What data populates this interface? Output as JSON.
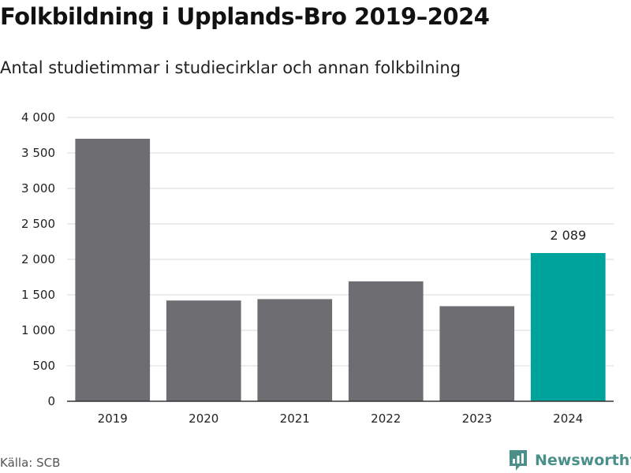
{
  "chart_data": {
    "type": "bar",
    "title": "Folkbildning i Upplands-Bro 2019–2024",
    "subtitle": "Antal studietimmar i studiecirklar och annan folkbilning",
    "categories": [
      "2019",
      "2020",
      "2021",
      "2022",
      "2023",
      "2024"
    ],
    "values": [
      3700,
      1420,
      1440,
      1690,
      1340,
      2089
    ],
    "highlight_index": 5,
    "data_labels": [
      {
        "index": 5,
        "text": "2 089"
      }
    ],
    "y_ticks": [
      0,
      500,
      1000,
      1500,
      2000,
      2500,
      3000,
      3500,
      4000
    ],
    "y_tick_labels": [
      "0",
      "500",
      "1 000",
      "1 500",
      "2 000",
      "2 500",
      "3 000",
      "3 500",
      "4 000"
    ],
    "ylim": [
      0,
      4000
    ],
    "grid": true,
    "xlabel": "",
    "ylabel": "",
    "colors": {
      "bar": "#6e6d72",
      "highlight": "#00a39b",
      "grid": "#d9d9d9",
      "axis": "#333333"
    }
  },
  "footer": {
    "source": "Källa: SCB",
    "brand": "Newsworthy",
    "brand_icon": "newsworthy-logo-icon",
    "brand_color": "#4a8f8a"
  }
}
